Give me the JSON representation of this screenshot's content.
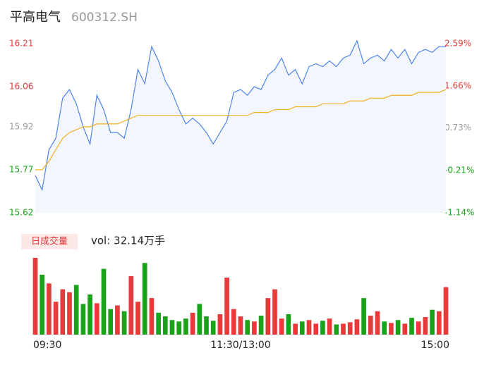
{
  "header": {
    "name": "平高电气",
    "code": "600312.SH"
  },
  "chart_data": {
    "type": "intraday",
    "x": [
      0,
      4,
      8,
      12,
      16,
      20,
      24,
      28,
      32,
      36,
      40,
      44,
      48,
      52,
      56,
      60,
      64,
      68,
      72,
      76,
      80,
      84,
      88,
      92,
      96,
      100,
      104,
      108,
      112,
      116,
      120,
      124,
      128,
      132,
      136,
      140,
      144,
      148,
      152,
      156,
      160,
      164,
      168,
      172,
      176,
      180,
      184,
      188,
      192,
      196,
      200,
      204,
      208,
      212,
      216,
      220,
      224,
      228,
      232,
      236,
      240
    ],
    "xlim": [
      0,
      240
    ],
    "xticks": [
      {
        "value": 0,
        "label": "09:30"
      },
      {
        "value": 120,
        "label": "11:30/13:00"
      },
      {
        "value": 240,
        "label": "15:00"
      }
    ],
    "series": [
      {
        "name": "price",
        "color": "#4e83e8",
        "values": [
          15.75,
          15.7,
          15.84,
          15.88,
          16.02,
          16.05,
          16.0,
          15.92,
          15.86,
          16.03,
          15.98,
          15.9,
          15.9,
          15.88,
          15.98,
          16.12,
          16.07,
          16.2,
          16.15,
          16.08,
          16.04,
          15.98,
          15.93,
          15.95,
          15.93,
          15.9,
          15.86,
          15.9,
          15.94,
          16.04,
          16.05,
          16.03,
          16.06,
          16.05,
          16.1,
          16.12,
          16.16,
          16.1,
          16.12,
          16.07,
          16.13,
          16.14,
          16.13,
          16.15,
          16.13,
          16.16,
          16.17,
          16.22,
          16.14,
          16.16,
          16.17,
          16.15,
          16.19,
          16.16,
          16.19,
          16.14,
          16.18,
          16.19,
          16.18,
          16.2,
          16.2
        ]
      },
      {
        "name": "average",
        "color": "#f0b020",
        "values": [
          15.77,
          15.77,
          15.8,
          15.84,
          15.88,
          15.9,
          15.91,
          15.92,
          15.92,
          15.93,
          15.93,
          15.93,
          15.93,
          15.94,
          15.95,
          15.96,
          15.96,
          15.96,
          15.96,
          15.96,
          15.96,
          15.96,
          15.96,
          15.96,
          15.96,
          15.96,
          15.96,
          15.96,
          15.96,
          15.96,
          15.96,
          15.96,
          15.97,
          15.97,
          15.97,
          15.98,
          15.98,
          15.98,
          15.99,
          15.99,
          15.99,
          15.99,
          16.0,
          16.0,
          16.0,
          16.0,
          16.01,
          16.01,
          16.01,
          16.02,
          16.02,
          16.02,
          16.03,
          16.03,
          16.03,
          16.03,
          16.04,
          16.04,
          16.04,
          16.04,
          16.05
        ]
      }
    ],
    "ylim": [
      15.62,
      16.21
    ],
    "yticks": [
      16.21,
      16.06,
      15.92,
      15.77,
      15.62
    ],
    "ytick_colors": [
      "#e83a3a",
      "#e83a3a",
      "#999999",
      "#1aa31a",
      "#1aa31a"
    ],
    "y2lim": [
      -1.14,
      2.59
    ],
    "y2ticks": [
      {
        "value": 2.59,
        "label": "2.59%"
      },
      {
        "value": 1.66,
        "label": "1.66%"
      },
      {
        "value": 0.73,
        "label": "0.73%"
      },
      {
        "value": -0.21,
        "label": "-0.21%"
      },
      {
        "value": -1.14,
        "label": "-1.14%"
      }
    ],
    "up_color": "#e83a3a",
    "down_color": "#1aa31a",
    "volume_label": "日成交量",
    "volume_text": "vol: 32.14万手",
    "volume": [
      10500,
      8200,
      7000,
      4500,
      6200,
      5800,
      6800,
      4200,
      5500,
      4300,
      9000,
      3500,
      4000,
      3200,
      8000,
      4500,
      9800,
      5000,
      3000,
      2500,
      2000,
      1800,
      2200,
      3000,
      4200,
      2500,
      1900,
      2800,
      7800,
      3500,
      2500,
      2000,
      1800,
      2600,
      5000,
      6200,
      2200,
      2800,
      1500,
      1800,
      2000,
      1500,
      1900,
      2200,
      1400,
      1500,
      1700,
      2100,
      5000,
      2600,
      3200,
      1800,
      1600,
      2000,
      1500,
      2300,
      1800,
      2400,
      3400,
      3200,
      6500
    ]
  }
}
